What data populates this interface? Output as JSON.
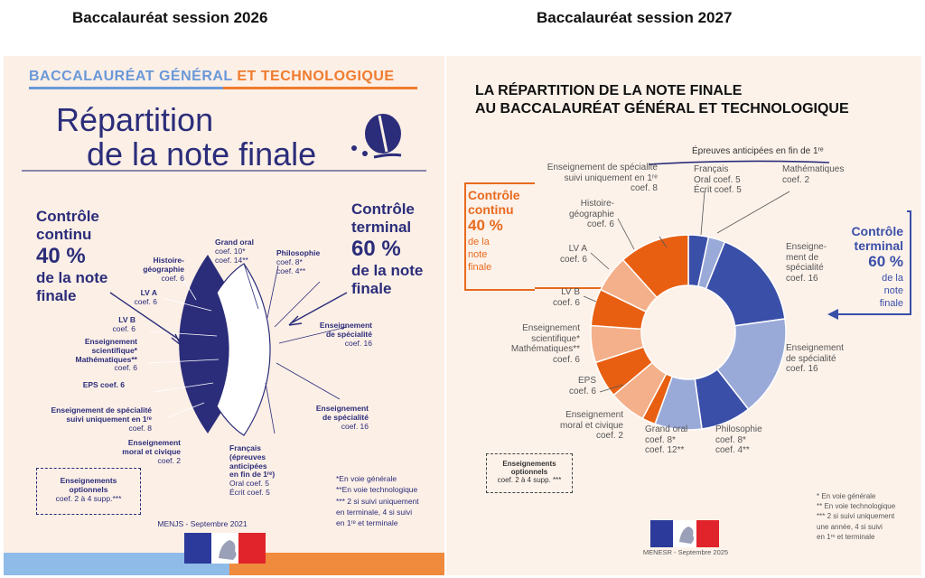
{
  "headers": {
    "left": "Baccalauréat session 2026",
    "right": "Baccalauréat session 2027"
  },
  "left": {
    "banner_part1": "BACCALAURÉAT GÉNÉRAL",
    "banner_part2": "ET TECHNOLOGIQUE",
    "title_line1": "Répartition",
    "title_line2": "de la note finale",
    "cc_line1": "Contrôle",
    "cc_line2": "continu",
    "cc_pct": "40 %",
    "cc_line3": "de la note",
    "cc_line4": "finale",
    "ct_line1": "Contrôle",
    "ct_line2": "terminal",
    "ct_pct": "60 %",
    "ct_line3": "de la note",
    "ct_line4": "finale",
    "labels": {
      "hg_name1": "Histoire-",
      "hg_name2": "géographie",
      "hg_coef": "coef. 6",
      "lva_name": "LV A",
      "lva_coef": "coef. 6",
      "lvb_name": "LV B",
      "lvb_coef": "coef. 6",
      "es_name1": "Enseignement",
      "es_name2": "scientifique*",
      "es_name3": "Mathématiques**",
      "es_coef": "coef. 6",
      "eps": "EPS coef. 6",
      "spe1_line1": "Enseignement de spécialité",
      "spe1_line2": "suivi uniquement en 1ʳᵉ",
      "spe1_coef": "coef. 8",
      "emc_line1": "Enseignement",
      "emc_line2": "moral et civique",
      "emc_coef": "coef. 2",
      "go_name": "Grand oral",
      "go_coef1": "coef. 10*",
      "go_coef2": "coef. 14**",
      "philo_name": "Philosophie",
      "philo_coef1": "coef. 8*",
      "philo_coef2": "coef. 4**",
      "spe_a_line1": "Enseignement",
      "spe_a_line2": "de spécialité",
      "spe_a_coef": "coef. 16",
      "spe_b_line1": "Enseignement",
      "spe_b_line2": "de spécialité",
      "spe_b_coef": "coef. 16",
      "fr_line1": "Français",
      "fr_line2": "(épreuves",
      "fr_line3": "anticipées",
      "fr_line4": "en fin de 1ʳᵉ)",
      "fr_oral": "Oral coef. 5",
      "fr_ecrit": "Écrit coef. 5"
    },
    "options_line1": "Enseignements",
    "options_line2": "optionnels",
    "options_line3": "coef. 2 à 4 supp.***",
    "note1": "*En voie générale",
    "note2": "**En voie technologique",
    "note3a": "*** 2 si suivi uniquement",
    "note3b": "en terminale, 4 si suivi",
    "note3c": "en 1ʳᵉ et terminale",
    "credit": "MENJS - Septembre 2021"
  },
  "right": {
    "title_line1": "LA RÉPARTITION DE LA NOTE FINALE",
    "title_line2": "AU BACCALAURÉAT GÉNÉRAL ET TECHNOLOGIQUE",
    "anticipated_title": "Épreuves anticipées en fin de 1ʳᵉ",
    "fr_name": "Français",
    "fr_oral": "Oral coef. 5",
    "fr_ecrit": "Écrit coef. 5",
    "maths_name": "Mathématiques",
    "maths_coef": "coef. 2",
    "cc_line1": "Contrôle",
    "cc_line2": "continu",
    "cc_pct": "40 %",
    "cc_line3": "de la",
    "cc_line4": "note",
    "cc_line5": "finale",
    "ct_line1": "Contrôle",
    "ct_line2": "terminal",
    "ct_pct": "60 %",
    "ct_line3": "de la",
    "ct_line4": "note",
    "ct_line5": "finale",
    "labels": {
      "spe1_line1": "Enseignement de spécialité",
      "spe1_line2": "suivi uniquement en 1ʳᵉ",
      "spe1_coef": "coef. 8",
      "hg_name1": "Histoire-",
      "hg_name2": "géographie",
      "hg_coef": "coef. 6",
      "lva_name": "LV A",
      "lva_coef": "coef. 6",
      "lvb_name": "LV B",
      "lvb_coef": "coef. 6",
      "es_line1": "Enseignement",
      "es_line2": "scientifique*",
      "es_line3": "Mathématiques**",
      "es_coef": "coef. 6",
      "eps_name": "EPS",
      "eps_coef": "coef. 6",
      "emc_line1": "Enseignement",
      "emc_line2": "moral et civique",
      "emc_coef": "coef. 2",
      "go_name": "Grand oral",
      "go_coef1": "coef. 8*",
      "go_coef2": "coef. 12**",
      "philo_name": "Philosophie",
      "philo_coef1": "coef. 8*",
      "philo_coef2": "coef. 4**",
      "spe_a_line1": "Enseigne-",
      "spe_a_line2": "ment de",
      "spe_a_line3": "spécialité",
      "spe_a_coef": "coef. 16",
      "spe_b_line1": "Enseignement",
      "spe_b_line2": "de spécialité",
      "spe_b_coef": "coef. 16"
    },
    "options_line1": "Enseignements",
    "options_line2": "optionnels",
    "options_line3": "coef. 2 à 4 supp. ***",
    "note1": "* En voie générale",
    "note2": "** En voie technologique",
    "note3a": "*** 2 si suivi uniquement",
    "note3b": "une année, 4 si suivi",
    "note3c": "en 1ʳᵉ et terminale",
    "credit": "MENESR - Septembre 2025"
  },
  "colors": {
    "navy": "#2b2d7a",
    "orange": "#e86a1e",
    "light_blue": "#7fb3e6",
    "salmon": "#f4b08a",
    "dark_orange": "#e85f12",
    "mid_blue": "#3a4fa8",
    "pale_blue": "#9aaad8"
  }
}
